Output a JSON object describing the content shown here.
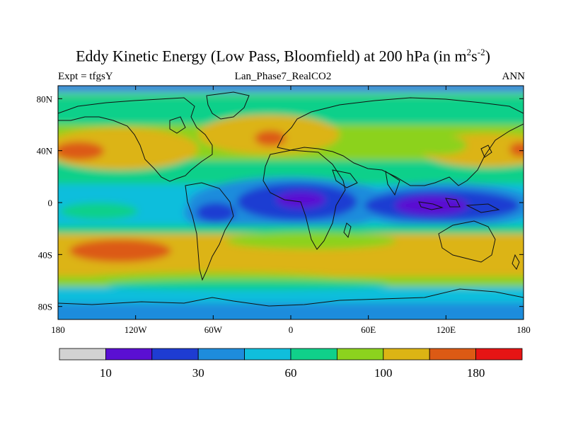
{
  "title": {
    "main": "Eddy Kinetic Energy (Low Pass, Bloomfield) at 200 hPa (in m",
    "sup1": "2",
    "mid": "s",
    "sup2": "-2",
    "close": ")"
  },
  "subtitle": {
    "left": "Expt = tfgsY",
    "center": "Lan_Phase7_RealCO2",
    "right": "ANN"
  },
  "axes": {
    "x_ticks": [
      {
        "lon": -180,
        "label": "180"
      },
      {
        "lon": -120,
        "label": "120W"
      },
      {
        "lon": -60,
        "label": "60W"
      },
      {
        "lon": 0,
        "label": "0"
      },
      {
        "lon": 60,
        "label": "60E"
      },
      {
        "lon": 120,
        "label": "120E"
      },
      {
        "lon": 180,
        "label": "180"
      }
    ],
    "y_ticks": [
      {
        "lat": 80,
        "label": "80N"
      },
      {
        "lat": 40,
        "label": "40N"
      },
      {
        "lat": 0,
        "label": "0"
      },
      {
        "lat": -40,
        "label": "40S"
      },
      {
        "lat": -80,
        "label": "80S"
      }
    ]
  },
  "colorbar": {
    "colors": [
      "#d2d2d2",
      "#5a0fd2",
      "#1e3cd2",
      "#1e8cdc",
      "#10bedc",
      "#10d08a",
      "#8cd21e",
      "#dcb414",
      "#dc5a14",
      "#e61414"
    ],
    "labels": [
      {
        "boundary": 1,
        "text": "10"
      },
      {
        "boundary": 3,
        "text": "30"
      },
      {
        "boundary": 5,
        "text": "60"
      },
      {
        "boundary": 7,
        "text": "100"
      },
      {
        "boundary": 9,
        "text": "180"
      }
    ]
  }
}
